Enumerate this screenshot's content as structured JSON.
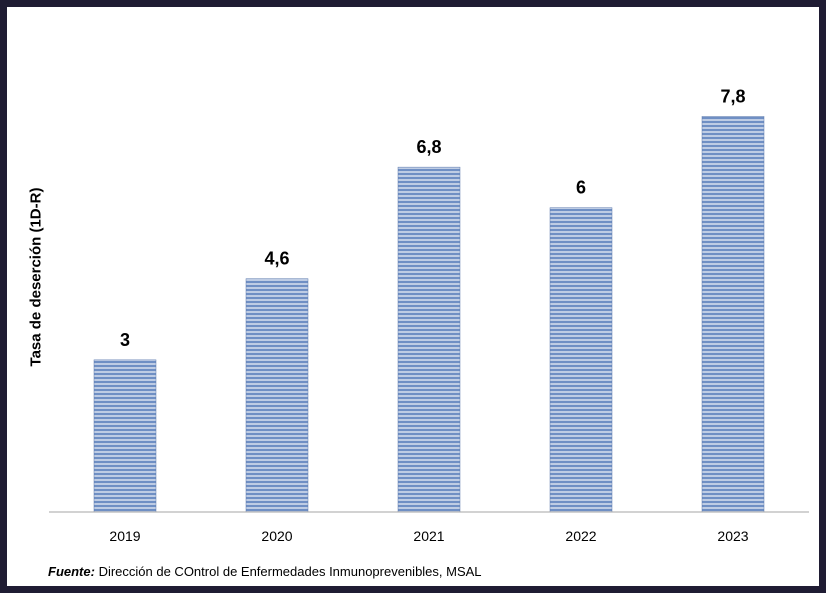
{
  "chart_data": {
    "type": "bar",
    "categories": [
      "2019",
      "2020",
      "2021",
      "2022",
      "2023"
    ],
    "values": [
      3,
      4.6,
      6.8,
      6,
      7.8
    ],
    "value_labels": [
      "3",
      "4,6",
      "6,8",
      "6",
      "7,8"
    ],
    "title": "",
    "xlabel": "",
    "ylabel": "Tasa de deserción (1D-R)",
    "ylim": [
      0,
      8.4
    ],
    "grid": false,
    "legend": "none",
    "bar_color": "#6f8fc4",
    "bar_stripe_color": "#ffffff"
  },
  "source": {
    "label": "Fuente:",
    "text": " Dirección de COntrol de Enfermedades Inmunoprevenibles, MSAL"
  },
  "colors": {
    "background_frame": "#1f1c33",
    "axis": "#a6a6a6"
  }
}
